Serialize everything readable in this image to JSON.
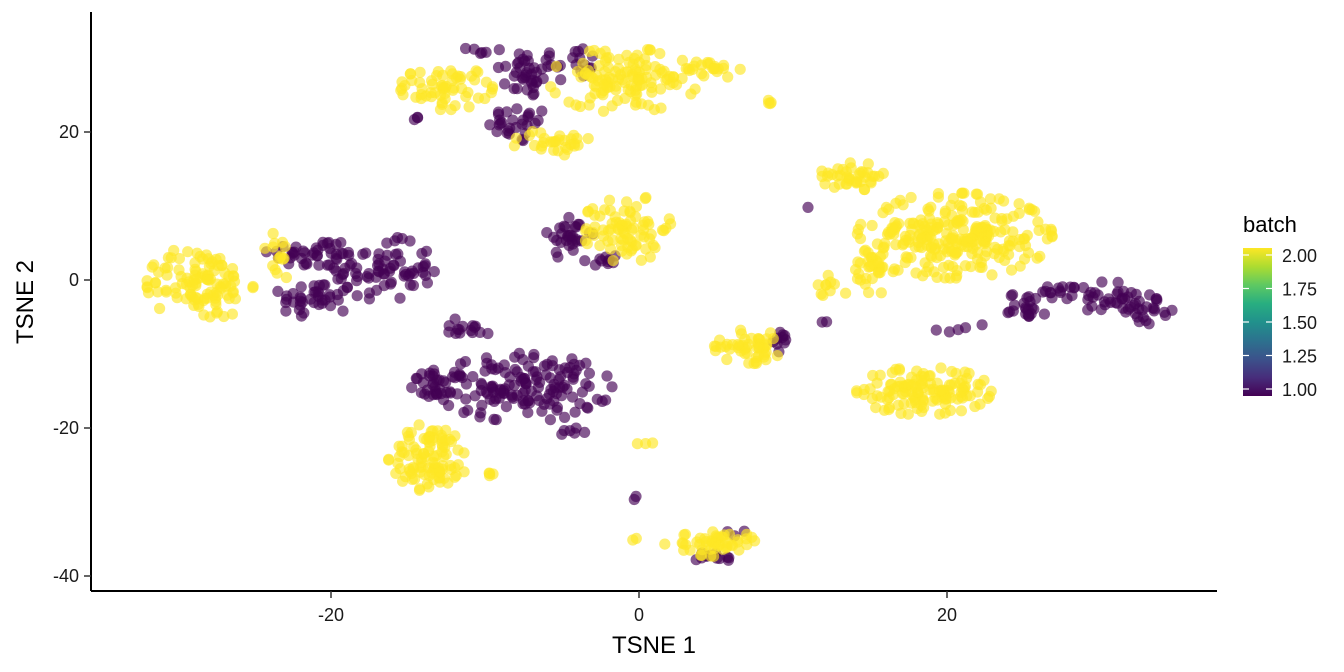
{
  "chart_data": {
    "type": "scatter",
    "xlabel": "TSNE 1",
    "ylabel": "TSNE 2",
    "xlim": [
      -35.5,
      37.5
    ],
    "ylim": [
      -42,
      36
    ],
    "x_ticks": [
      -20,
      0,
      20
    ],
    "y_ticks": [
      -40,
      -20,
      0,
      20
    ],
    "x_tick_labels": [
      "-20",
      "0",
      "20"
    ],
    "y_tick_labels": [
      "-40",
      "-20",
      "0",
      "20"
    ],
    "grid": false,
    "point_alpha": 0.65,
    "legend": {
      "title": "batch",
      "placement": "right",
      "range": [
        1.0,
        2.0
      ],
      "labels": [
        "2.00",
        "1.75",
        "1.50",
        "1.25",
        "1.00"
      ],
      "colormap": "viridis",
      "colors": {
        "low": "#440154",
        "high": "#fde725"
      }
    },
    "series": [
      {
        "batch": 1,
        "color": "#440154",
        "clusters": [
          {
            "cx": -7.2,
            "cy": 28.0,
            "rx": 1.9,
            "ry": 3.2,
            "n": 40
          },
          {
            "cx": -7.8,
            "cy": 21.0,
            "rx": 1.8,
            "ry": 2.3,
            "n": 28
          },
          {
            "cx": -4.2,
            "cy": 29.5,
            "rx": 1.5,
            "ry": 2.0,
            "n": 16
          },
          {
            "cx": -10.0,
            "cy": 31.0,
            "rx": 1.2,
            "ry": 0.6,
            "n": 6
          },
          {
            "cx": -14.5,
            "cy": 21.8,
            "rx": 0.7,
            "ry": 0.4,
            "n": 3
          },
          {
            "cx": -4.5,
            "cy": 6.0,
            "rx": 1.3,
            "ry": 3.0,
            "n": 30
          },
          {
            "cx": -2.5,
            "cy": 2.5,
            "rx": 1.2,
            "ry": 1.0,
            "n": 10
          },
          {
            "cx": -21.0,
            "cy": 3.5,
            "rx": 2.8,
            "ry": 2.0,
            "n": 40
          },
          {
            "cx": -21.0,
            "cy": -2.5,
            "rx": 2.3,
            "ry": 2.2,
            "n": 40
          },
          {
            "cx": -16.5,
            "cy": 1.5,
            "rx": 2.8,
            "ry": 3.8,
            "n": 70
          },
          {
            "cx": -7.5,
            "cy": -14.5,
            "rx": 5.0,
            "ry": 4.0,
            "n": 150
          },
          {
            "cx": -13.0,
            "cy": -14.0,
            "rx": 1.6,
            "ry": 1.6,
            "n": 30
          },
          {
            "cx": -11.0,
            "cy": -6.5,
            "rx": 2.5,
            "ry": 1.2,
            "n": 15
          },
          {
            "cx": -4.5,
            "cy": -20.5,
            "rx": 1.0,
            "ry": 0.8,
            "n": 6
          },
          {
            "cx": 9.2,
            "cy": -8.5,
            "rx": 0.8,
            "ry": 1.3,
            "n": 10
          },
          {
            "cx": 5.0,
            "cy": -37.5,
            "rx": 1.6,
            "ry": 0.8,
            "n": 14
          },
          {
            "cx": 6.2,
            "cy": -34.0,
            "rx": 0.6,
            "ry": 0.5,
            "n": 3
          },
          {
            "cx": 25.2,
            "cy": -3.5,
            "rx": 1.2,
            "ry": 1.8,
            "n": 22
          },
          {
            "cx": 27.5,
            "cy": -1.5,
            "rx": 1.3,
            "ry": 1.0,
            "n": 16
          },
          {
            "cx": 30.5,
            "cy": -2.5,
            "rx": 1.6,
            "ry": 2.0,
            "n": 30
          },
          {
            "cx": 33.0,
            "cy": -4.0,
            "rx": 1.4,
            "ry": 1.8,
            "n": 22
          },
          {
            "cx": 21.0,
            "cy": -6.5,
            "rx": 1.6,
            "ry": 0.6,
            "n": 5
          },
          {
            "cx": -0.2,
            "cy": -29.5,
            "rx": 0.3,
            "ry": 0.3,
            "n": 2
          },
          {
            "cx": 11.0,
            "cy": 9.8,
            "rx": 0.3,
            "ry": 0.3,
            "n": 1
          },
          {
            "cx": 12.2,
            "cy": -5.6,
            "rx": 0.4,
            "ry": 0.3,
            "n": 2
          }
        ]
      },
      {
        "batch": 2,
        "color": "#fde725",
        "clusters": [
          {
            "cx": -12.5,
            "cy": 26.0,
            "rx": 2.6,
            "ry": 2.6,
            "n": 60
          },
          {
            "cx": -1.0,
            "cy": 27.0,
            "rx": 4.2,
            "ry": 3.8,
            "n": 120
          },
          {
            "cx": 4.5,
            "cy": 28.5,
            "rx": 1.8,
            "ry": 1.2,
            "n": 20
          },
          {
            "cx": -5.5,
            "cy": 18.5,
            "rx": 2.3,
            "ry": 1.6,
            "n": 30
          },
          {
            "cx": 8.4,
            "cy": 24.0,
            "rx": 0.4,
            "ry": 0.5,
            "n": 4
          },
          {
            "cx": -0.8,
            "cy": 7.0,
            "rx": 2.5,
            "ry": 4.0,
            "n": 80
          },
          {
            "cx": -28.5,
            "cy": -0.5,
            "rx": 3.0,
            "ry": 4.5,
            "n": 110
          },
          {
            "cx": -23.5,
            "cy": 3.0,
            "rx": 1.0,
            "ry": 3.0,
            "n": 15
          },
          {
            "cx": -13.5,
            "cy": -24.0,
            "rx": 2.4,
            "ry": 4.0,
            "n": 100
          },
          {
            "cx": -9.0,
            "cy": -26.0,
            "rx": 0.8,
            "ry": 0.6,
            "n": 4
          },
          {
            "cx": 7.2,
            "cy": -9.0,
            "rx": 2.0,
            "ry": 2.0,
            "n": 50
          },
          {
            "cx": 5.0,
            "cy": -35.5,
            "rx": 2.2,
            "ry": 1.6,
            "n": 50
          },
          {
            "cx": 0.5,
            "cy": -22.0,
            "rx": 0.6,
            "ry": 0.3,
            "n": 3
          },
          {
            "cx": 14.0,
            "cy": 14.0,
            "rx": 2.0,
            "ry": 1.6,
            "n": 40
          },
          {
            "cx": 20.5,
            "cy": 6.0,
            "rx": 5.5,
            "ry": 5.0,
            "n": 260
          },
          {
            "cx": 15.2,
            "cy": 1.0,
            "rx": 1.2,
            "ry": 3.5,
            "n": 30
          },
          {
            "cx": 12.5,
            "cy": -0.5,
            "rx": 1.2,
            "ry": 1.5,
            "n": 10
          },
          {
            "cx": 18.5,
            "cy": -15.0,
            "rx": 3.8,
            "ry": 2.8,
            "n": 130
          },
          {
            "cx": -0.5,
            "cy": -34.8,
            "rx": 0.3,
            "ry": 0.3,
            "n": 2
          },
          {
            "cx": 1.5,
            "cy": -35.5,
            "rx": 0.3,
            "ry": 0.3,
            "n": 1
          }
        ]
      }
    ]
  }
}
